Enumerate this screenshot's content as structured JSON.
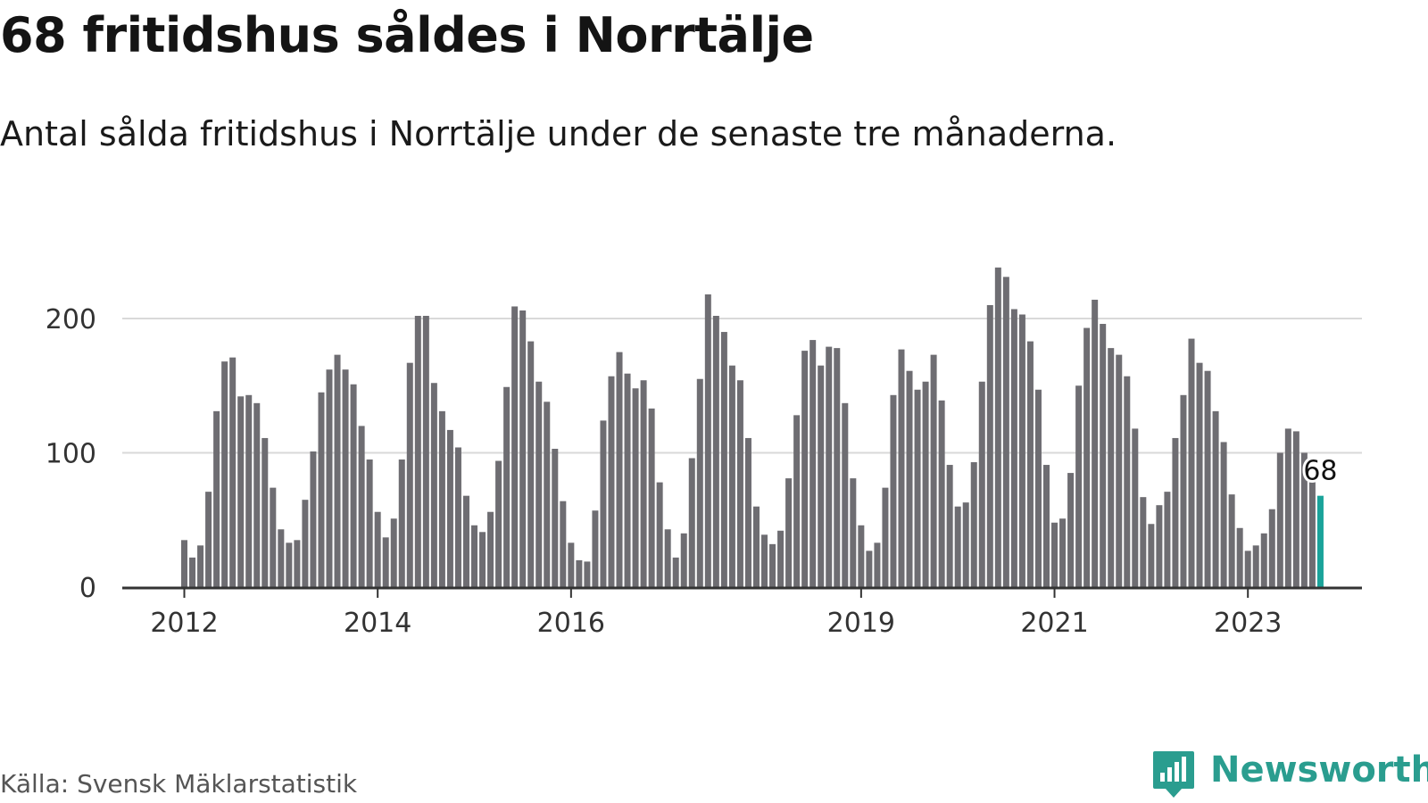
{
  "title": "68 fritidshus såldes i Norrtälje",
  "subtitle": "Antal sålda fritidshus i Norrtälje under de senaste tre månaderna.",
  "source": "Källa: Svensk Mäklarstatistik",
  "brand": {
    "name": "Newsworthy",
    "icon": "newsworthy-logo-icon"
  },
  "colors": {
    "bar": "#6e6d72",
    "highlight": "#1aa39a",
    "grid": "#d9d9d9",
    "axis": "#333333",
    "brand": "#2a9d8f"
  },
  "chart_data": {
    "type": "bar",
    "title": "68 fritidshus såldes i Norrtälje",
    "subtitle": "Antal sålda fritidshus i Norrtälje under de senaste tre månaderna.",
    "xlabel": "",
    "ylabel": "",
    "ylim": [
      0,
      250
    ],
    "yticks": [
      0,
      100,
      200
    ],
    "xticks": [
      "2012",
      "2014",
      "2016",
      "2019",
      "2021",
      "2023"
    ],
    "grid": true,
    "x_start": "2012-01",
    "x_end": "2023-10",
    "categories": [
      "2012-01",
      "2012-02",
      "2012-03",
      "2012-04",
      "2012-05",
      "2012-06",
      "2012-07",
      "2012-08",
      "2012-09",
      "2012-10",
      "2012-11",
      "2012-12",
      "2013-01",
      "2013-02",
      "2013-03",
      "2013-04",
      "2013-05",
      "2013-06",
      "2013-07",
      "2013-08",
      "2013-09",
      "2013-10",
      "2013-11",
      "2013-12",
      "2014-01",
      "2014-02",
      "2014-03",
      "2014-04",
      "2014-05",
      "2014-06",
      "2014-07",
      "2014-08",
      "2014-09",
      "2014-10",
      "2014-11",
      "2014-12",
      "2015-01",
      "2015-02",
      "2015-03",
      "2015-04",
      "2015-05",
      "2015-06",
      "2015-07",
      "2015-08",
      "2015-09",
      "2015-10",
      "2015-11",
      "2015-12",
      "2016-01",
      "2016-02",
      "2016-03",
      "2016-04",
      "2016-05",
      "2016-06",
      "2016-07",
      "2016-08",
      "2016-09",
      "2016-10",
      "2016-11",
      "2016-12",
      "2017-01",
      "2017-02",
      "2017-03",
      "2017-04",
      "2017-05",
      "2017-06",
      "2017-07",
      "2017-08",
      "2017-09",
      "2017-10",
      "2017-11",
      "2017-12",
      "2018-01",
      "2018-02",
      "2018-03",
      "2018-04",
      "2018-05",
      "2018-06",
      "2018-07",
      "2018-08",
      "2018-09",
      "2018-10",
      "2018-11",
      "2018-12",
      "2019-01",
      "2019-02",
      "2019-03",
      "2019-04",
      "2019-05",
      "2019-06",
      "2019-07",
      "2019-08",
      "2019-09",
      "2019-10",
      "2019-11",
      "2019-12",
      "2020-01",
      "2020-02",
      "2020-03",
      "2020-04",
      "2020-05",
      "2020-06",
      "2020-07",
      "2020-08",
      "2020-09",
      "2020-10",
      "2020-11",
      "2020-12",
      "2021-01",
      "2021-02",
      "2021-03",
      "2021-04",
      "2021-05",
      "2021-06",
      "2021-07",
      "2021-08",
      "2021-09",
      "2021-10",
      "2021-11",
      "2021-12",
      "2022-01",
      "2022-02",
      "2022-03",
      "2022-04",
      "2022-05",
      "2022-06",
      "2022-07",
      "2022-08",
      "2022-09",
      "2022-10",
      "2022-11",
      "2022-12",
      "2023-01",
      "2023-02",
      "2023-03",
      "2023-04",
      "2023-05",
      "2023-06",
      "2023-07",
      "2023-08",
      "2023-09",
      "2023-10"
    ],
    "values": [
      35,
      22,
      31,
      71,
      131,
      168,
      171,
      142,
      143,
      137,
      111,
      74,
      43,
      33,
      35,
      65,
      101,
      145,
      162,
      173,
      162,
      151,
      120,
      95,
      56,
      37,
      51,
      95,
      167,
      202,
      202,
      152,
      131,
      117,
      104,
      68,
      46,
      41,
      56,
      94,
      149,
      209,
      206,
      183,
      153,
      138,
      103,
      64,
      33,
      20,
      19,
      57,
      124,
      157,
      175,
      159,
      148,
      154,
      133,
      78,
      43,
      22,
      40,
      96,
      155,
      218,
      202,
      190,
      165,
      154,
      111,
      60,
      39,
      32,
      42,
      81,
      128,
      176,
      184,
      165,
      179,
      178,
      137,
      81,
      46,
      27,
      33,
      74,
      143,
      177,
      161,
      147,
      153,
      173,
      139,
      91,
      60,
      63,
      93,
      153,
      210,
      238,
      231,
      207,
      203,
      183,
      147,
      91,
      48,
      51,
      85,
      150,
      193,
      214,
      196,
      178,
      173,
      157,
      118,
      67,
      47,
      61,
      71,
      111,
      143,
      185,
      167,
      161,
      131,
      108,
      69,
      44,
      27,
      31,
      40,
      58,
      100,
      118,
      116,
      100,
      83,
      68
    ],
    "highlight_index": 141,
    "data_label": "68"
  }
}
